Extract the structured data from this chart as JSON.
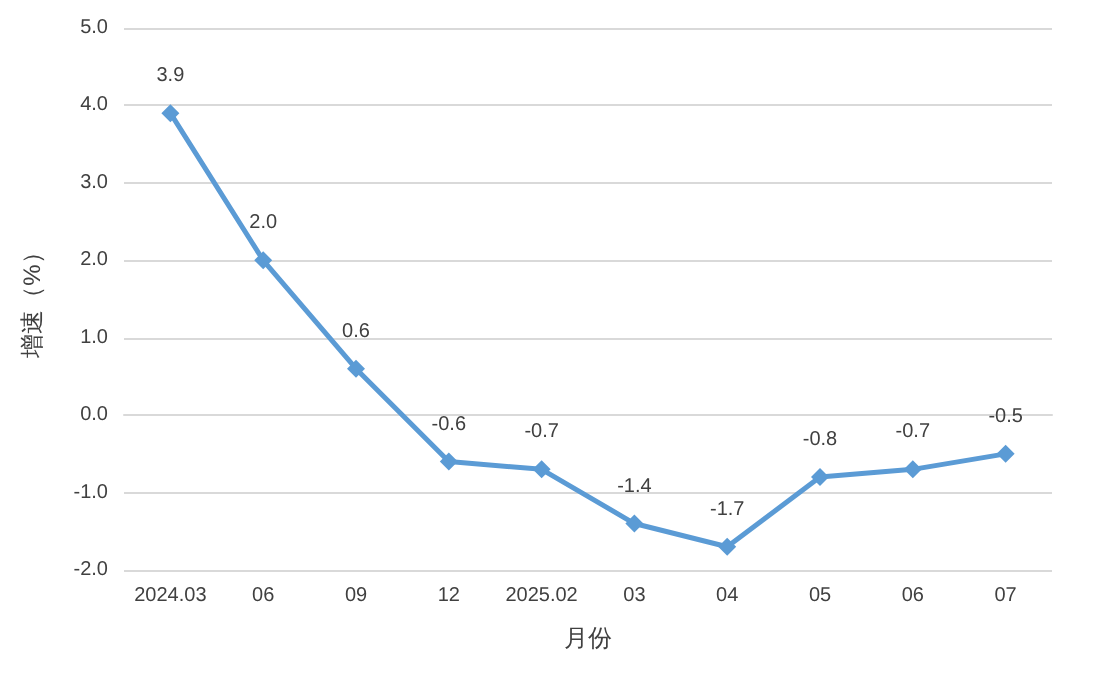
{
  "chart_data": {
    "type": "line",
    "xlabel": "月份",
    "ylabel": "增速（%）",
    "categories": [
      "2024.03",
      "06",
      "09",
      "12",
      "2025.02",
      "03",
      "04",
      "05",
      "06",
      "07"
    ],
    "series": [
      {
        "color": "#5b9bd5",
        "values": [
          3.9,
          2.0,
          0.6,
          -0.6,
          -0.7,
          -1.4,
          -1.7,
          -0.8,
          -0.7,
          -0.5
        ],
        "value_labels": [
          "3.9",
          "2.0",
          "0.6",
          "-0.6",
          "-0.7",
          "-1.4",
          "-1.7",
          "-0.8",
          "-0.7",
          "-0.5"
        ]
      }
    ],
    "ylim": [
      -2,
      5
    ],
    "yticks": [
      {
        "value": -2,
        "label": "-2.0"
      },
      {
        "value": -1,
        "label": "-1.0"
      },
      {
        "value": 0,
        "label": "0.0"
      },
      {
        "value": 1,
        "label": "1.0"
      },
      {
        "value": 2,
        "label": "2.0"
      },
      {
        "value": 3,
        "label": "3.0"
      },
      {
        "value": 4,
        "label": "4.0"
      },
      {
        "value": 5,
        "label": "5.0"
      }
    ],
    "grid": "y",
    "marker": "diamond",
    "line_style": "solid"
  }
}
